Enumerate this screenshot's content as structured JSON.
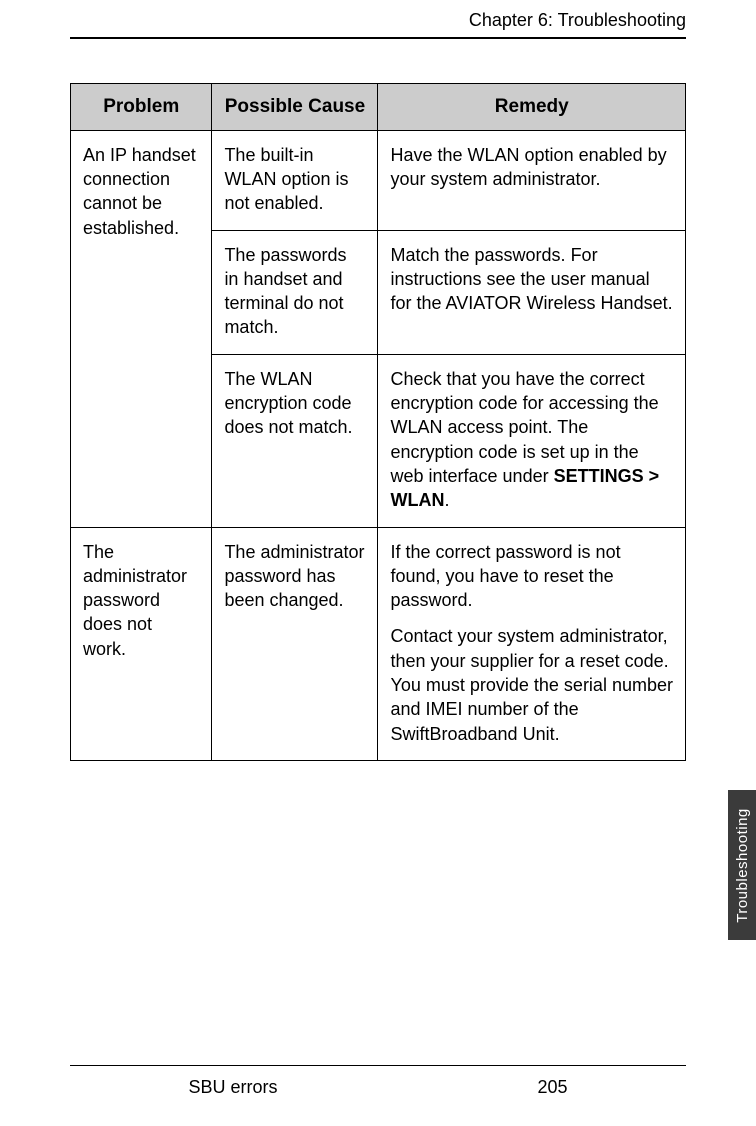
{
  "header": {
    "chapter": "Chapter 6:  Troubleshooting"
  },
  "table": {
    "columns": [
      "Problem",
      "Possible Cause",
      "Remedy"
    ],
    "header_bg": "#cccccc",
    "border_color": "#000000",
    "col_widths_pct": [
      23,
      27,
      50
    ],
    "rows": [
      {
        "problem": "An IP handset connection cannot be established.",
        "cause": "The built-in WLAN option is not enabled.",
        "remedy": [
          "Have the WLAN option enabled by your system administrator."
        ]
      },
      {
        "problem": null,
        "cause": "The passwords in handset and terminal do not match.",
        "remedy": [
          "Match the passwords. For instructions see the user manual for the AVIATOR Wireless Handset."
        ]
      },
      {
        "problem": null,
        "cause": "The WLAN encryption code does not match.",
        "remedy_html": "Check that you have the correct encryption code for accessing the WLAN access point. The encryption code is set up in the web interface under <strong>SETTINGS &gt; WLAN</strong>."
      },
      {
        "problem": "The administrator password does not work.",
        "cause": "The administrator password has been changed.",
        "remedy": [
          "If the correct password is not found, you have to reset the password.",
          "Contact your system administrator, then your supplier for a reset code. You must provide the serial number and IMEI number of the SwiftBroadband Unit."
        ]
      }
    ]
  },
  "sideTab": {
    "label": "Troubleshooting",
    "bg": "#3b3b3b",
    "color": "#ffffff"
  },
  "footer": {
    "section": "SBU errors",
    "page": "205"
  }
}
